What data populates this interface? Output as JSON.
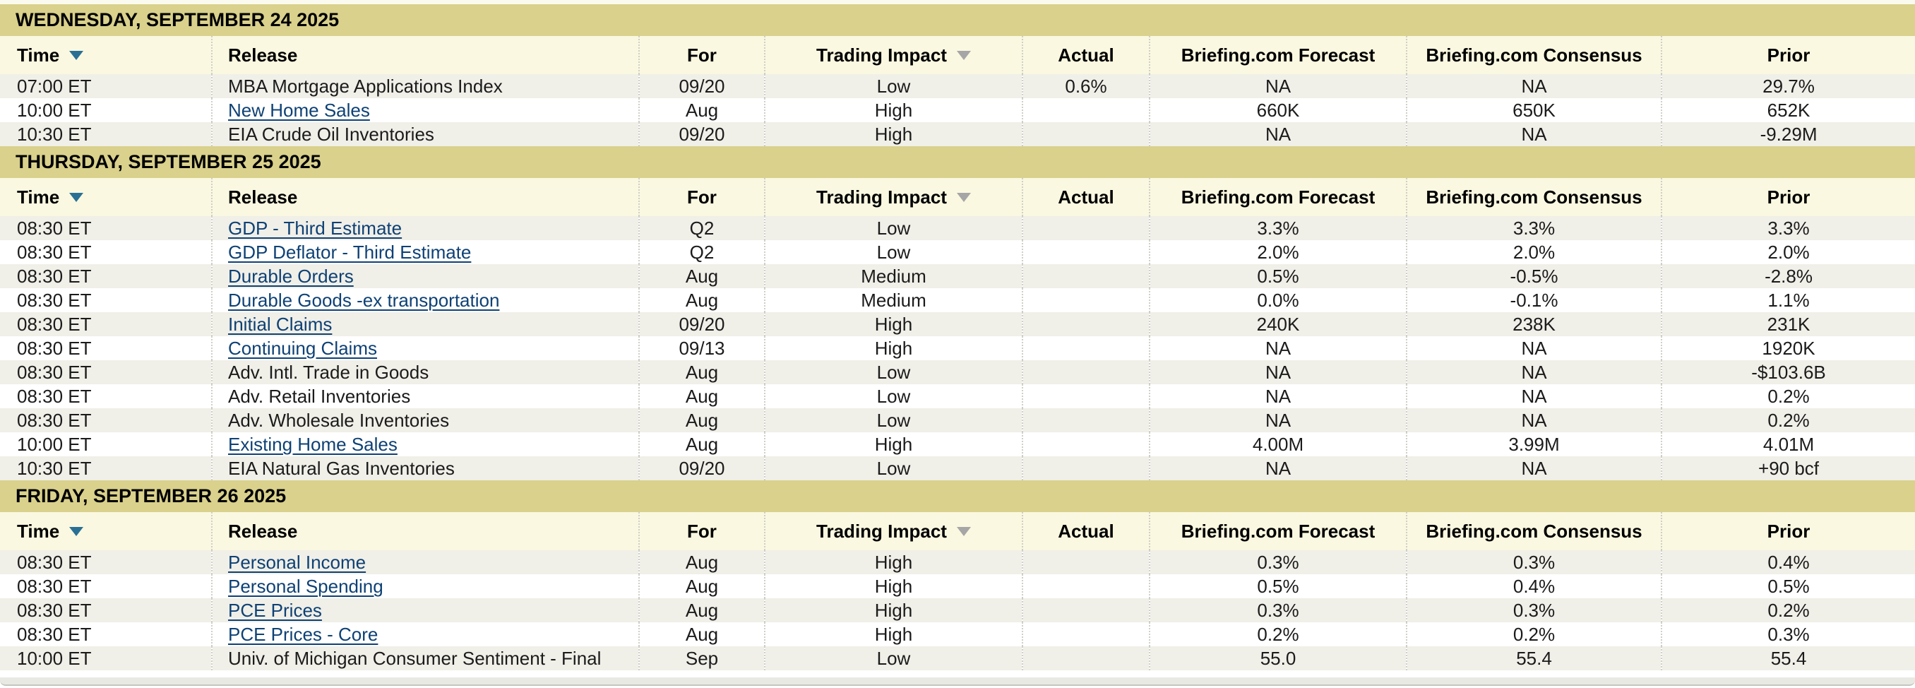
{
  "colors": {
    "day_band_bg": "#d9d18c",
    "header_row_bg": "#faf8e0",
    "stripe_row_bg": "#f0efe8",
    "white_row_bg": "#ffffff",
    "link_color": "#0e4175",
    "sort_arrow_active": "#2a7095",
    "sort_arrow_inactive": "#a6a6a6",
    "divider_color": "#cfcfc8",
    "top_strip_bg": "#fbfaef",
    "bottom_tray_bg": "#e9e9e3"
  },
  "icons": {
    "time_sort": "sort-descending-icon",
    "impact_sort": "sort-descending-icon"
  },
  "table": {
    "columns": [
      {
        "key": "time",
        "label": "Time",
        "sortable": true,
        "sort_arrow": "blue"
      },
      {
        "key": "release",
        "label": "Release",
        "sortable": false,
        "sort_arrow": null
      },
      {
        "key": "for",
        "label": "For",
        "sortable": false,
        "sort_arrow": null
      },
      {
        "key": "impact",
        "label": "Trading Impact",
        "sortable": true,
        "sort_arrow": "gray"
      },
      {
        "key": "actual",
        "label": "Actual",
        "sortable": false,
        "sort_arrow": null
      },
      {
        "key": "forecast",
        "label": "Briefing.com Forecast",
        "sortable": false,
        "sort_arrow": null
      },
      {
        "key": "consensus",
        "label": "Briefing.com Consensus",
        "sortable": false,
        "sort_arrow": null
      },
      {
        "key": "prior",
        "label": "Prior",
        "sortable": false,
        "sort_arrow": null
      }
    ],
    "sections": [
      {
        "date_header": "WEDNESDAY, SEPTEMBER 24 2025",
        "rows": [
          {
            "time": "07:00 ET",
            "release": "MBA Mortgage Applications Index",
            "link": false,
            "for": "09/20",
            "impact": "Low",
            "actual": "0.6%",
            "forecast": "NA",
            "consensus": "NA",
            "prior": "29.7%"
          },
          {
            "time": "10:00 ET",
            "release": "New Home Sales",
            "link": true,
            "for": "Aug",
            "impact": "High",
            "actual": "",
            "forecast": "660K",
            "consensus": "650K",
            "prior": "652K"
          },
          {
            "time": "10:30 ET",
            "release": "EIA Crude Oil Inventories",
            "link": false,
            "for": "09/20",
            "impact": "High",
            "actual": "",
            "forecast": "NA",
            "consensus": "NA",
            "prior": "-9.29M"
          }
        ]
      },
      {
        "date_header": "THURSDAY, SEPTEMBER 25 2025",
        "rows": [
          {
            "time": "08:30 ET",
            "release": "GDP - Third Estimate",
            "link": true,
            "for": "Q2",
            "impact": "Low",
            "actual": "",
            "forecast": "3.3%",
            "consensus": "3.3%",
            "prior": "3.3%"
          },
          {
            "time": "08:30 ET",
            "release": "GDP Deflator - Third Estimate",
            "link": true,
            "for": "Q2",
            "impact": "Low",
            "actual": "",
            "forecast": "2.0%",
            "consensus": "2.0%",
            "prior": "2.0%"
          },
          {
            "time": "08:30 ET",
            "release": "Durable Orders",
            "link": true,
            "for": "Aug",
            "impact": "Medium",
            "actual": "",
            "forecast": "0.5%",
            "consensus": "-0.5%",
            "prior": "-2.8%"
          },
          {
            "time": "08:30 ET",
            "release": "Durable Goods -ex transportation",
            "link": true,
            "for": "Aug",
            "impact": "Medium",
            "actual": "",
            "forecast": "0.0%",
            "consensus": "-0.1%",
            "prior": "1.1%"
          },
          {
            "time": "08:30 ET",
            "release": "Initial Claims",
            "link": true,
            "for": "09/20",
            "impact": "High",
            "actual": "",
            "forecast": "240K",
            "consensus": "238K",
            "prior": "231K"
          },
          {
            "time": "08:30 ET",
            "release": "Continuing Claims",
            "link": true,
            "for": "09/13",
            "impact": "High",
            "actual": "",
            "forecast": "NA",
            "consensus": "NA",
            "prior": "1920K"
          },
          {
            "time": "08:30 ET",
            "release": "Adv. Intl. Trade in Goods",
            "link": false,
            "for": "Aug",
            "impact": "Low",
            "actual": "",
            "forecast": "NA",
            "consensus": "NA",
            "prior": "-$103.6B"
          },
          {
            "time": "08:30 ET",
            "release": "Adv. Retail Inventories",
            "link": false,
            "for": "Aug",
            "impact": "Low",
            "actual": "",
            "forecast": "NA",
            "consensus": "NA",
            "prior": "0.2%"
          },
          {
            "time": "08:30 ET",
            "release": "Adv. Wholesale Inventories",
            "link": false,
            "for": "Aug",
            "impact": "Low",
            "actual": "",
            "forecast": "NA",
            "consensus": "NA",
            "prior": "0.2%"
          },
          {
            "time": "10:00 ET",
            "release": "Existing Home Sales",
            "link": true,
            "for": "Aug",
            "impact": "High",
            "actual": "",
            "forecast": "4.00M",
            "consensus": "3.99M",
            "prior": "4.01M"
          },
          {
            "time": "10:30 ET",
            "release": "EIA Natural Gas Inventories",
            "link": false,
            "for": "09/20",
            "impact": "Low",
            "actual": "",
            "forecast": "NA",
            "consensus": "NA",
            "prior": "+90 bcf"
          }
        ]
      },
      {
        "date_header": "FRIDAY, SEPTEMBER 26 2025",
        "rows": [
          {
            "time": "08:30 ET",
            "release": "Personal Income",
            "link": true,
            "for": "Aug",
            "impact": "High",
            "actual": "",
            "forecast": "0.3%",
            "consensus": "0.3%",
            "prior": "0.4%"
          },
          {
            "time": "08:30 ET",
            "release": "Personal Spending",
            "link": true,
            "for": "Aug",
            "impact": "High",
            "actual": "",
            "forecast": "0.5%",
            "consensus": "0.4%",
            "prior": "0.5%"
          },
          {
            "time": "08:30 ET",
            "release": "PCE Prices",
            "link": true,
            "for": "Aug",
            "impact": "High",
            "actual": "",
            "forecast": "0.3%",
            "consensus": "0.3%",
            "prior": "0.2%"
          },
          {
            "time": "08:30 ET",
            "release": "PCE Prices - Core",
            "link": true,
            "for": "Aug",
            "impact": "High",
            "actual": "",
            "forecast": "0.2%",
            "consensus": "0.2%",
            "prior": "0.3%"
          },
          {
            "time": "10:00 ET",
            "release": "Univ. of Michigan Consumer Sentiment - Final",
            "link": false,
            "for": "Sep",
            "impact": "Low",
            "actual": "",
            "forecast": "55.0",
            "consensus": "55.4",
            "prior": "55.4"
          }
        ]
      }
    ]
  }
}
